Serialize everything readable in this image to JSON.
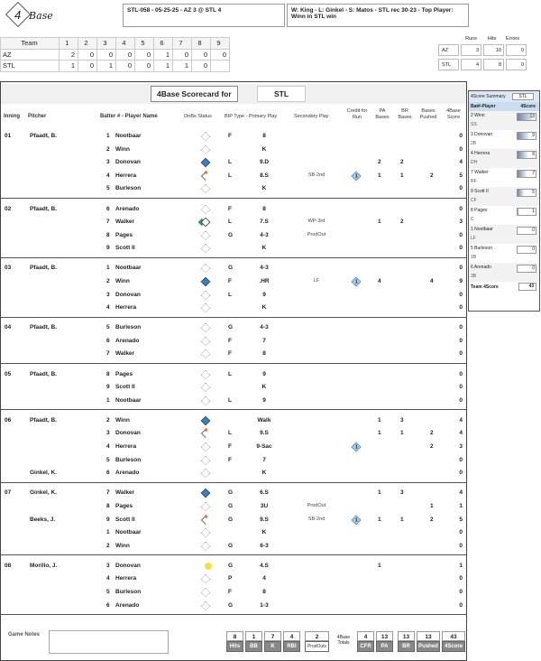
{
  "header": {
    "logo_text": "4Base",
    "logo_number": "4",
    "logo_word": "Base",
    "game_title": "STL-058 - 05-25-25 - AZ 3 @ STL 4",
    "game_summary": "W: King - L: Ginkel - S: Matos - STL rec 30-23 - Top Player: Winn in STL win"
  },
  "linescore": {
    "team_label": "Team",
    "innings": [
      "1",
      "2",
      "3",
      "4",
      "5",
      "6",
      "7",
      "8",
      "9"
    ],
    "teams": [
      {
        "name": "AZ",
        "scores": [
          "2",
          "0",
          "0",
          "0",
          "0",
          "1",
          "0",
          "0",
          "0"
        ]
      },
      {
        "name": "STL",
        "scores": [
          "1",
          "0",
          "1",
          "0",
          "0",
          "1",
          "1",
          "0",
          ""
        ]
      }
    ]
  },
  "rhe": {
    "headers": [
      "Runs",
      "Hits",
      "Errors"
    ],
    "teams": [
      {
        "name": "AZ",
        "runs": "3",
        "hits": "10",
        "errors": "0"
      },
      {
        "name": "STL",
        "runs": "4",
        "hits": "8",
        "errors": "0"
      }
    ]
  },
  "scorecard": {
    "title": "4Base Scorecard for",
    "team": "STL",
    "columns": {
      "inning": "Inning",
      "pitcher": "Pitcher",
      "batter": "Batter # - Player Name",
      "onbase": "OnBs Status",
      "bip": "BIP Type - Primary Play",
      "secondary": "Secondary Play",
      "cfr": "Credit for Run",
      "pa": "PA Bases",
      "br": "BR Bases",
      "pushed": "Bases Pushed",
      "score": "4Base Score"
    },
    "innings": [
      {
        "inning": "01",
        "rows": [
          {
            "pitcher": "Pfaadt, B.",
            "num": "1",
            "name": "Nootbaar",
            "onbase": "empty",
            "bip": "F",
            "play": "8",
            "secondary": "",
            "cfr": "",
            "pa": "",
            "br": "",
            "pushed": "",
            "score": "0"
          },
          {
            "pitcher": "",
            "num": "2",
            "name": "Winn",
            "onbase": "empty",
            "bip": "",
            "play": "K",
            "secondary": "",
            "cfr": "",
            "pa": "",
            "br": "",
            "pushed": "",
            "score": "0"
          },
          {
            "pitcher": "",
            "num": "3",
            "name": "Donovan",
            "onbase": "blue",
            "bip": "L",
            "play": "9.D",
            "secondary": "",
            "cfr": "",
            "pa": "2",
            "br": "2",
            "pushed": "",
            "score": "4"
          },
          {
            "pitcher": "",
            "num": "4",
            "name": "Herrera",
            "onbase": "orange",
            "bip": "L",
            "play": "8.S",
            "secondary": "SB-2nd",
            "cfr": "1",
            "pa": "1",
            "br": "1",
            "pushed": "2",
            "score": "5"
          },
          {
            "pitcher": "",
            "num": "5",
            "name": "Burleson",
            "onbase": "empty",
            "bip": "",
            "play": "K",
            "secondary": "",
            "cfr": "",
            "pa": "",
            "br": "",
            "pushed": "",
            "score": "0"
          }
        ]
      },
      {
        "inning": "02",
        "rows": [
          {
            "pitcher": "Pfaadt, B.",
            "num": "6",
            "name": "Arenado",
            "onbase": "empty",
            "bip": "F",
            "play": "8",
            "secondary": "",
            "cfr": "",
            "pa": "",
            "br": "",
            "pushed": "",
            "score": "0"
          },
          {
            "pitcher": "",
            "num": "7",
            "name": "Walker",
            "onbase": "green",
            "bip": "L",
            "play": "7.S",
            "secondary": "WP-3rd",
            "cfr": "",
            "pa": "1",
            "br": "2",
            "pushed": "",
            "score": "3"
          },
          {
            "pitcher": "",
            "num": "8",
            "name": "Pages",
            "onbase": "empty",
            "bip": "G",
            "play": "4-3",
            "secondary": "ProdOut",
            "cfr": "",
            "pa": "",
            "br": "",
            "pushed": "",
            "score": "0"
          },
          {
            "pitcher": "",
            "num": "9",
            "name": "Scott II",
            "onbase": "empty",
            "bip": "",
            "play": "K",
            "secondary": "",
            "cfr": "",
            "pa": "",
            "br": "",
            "pushed": "",
            "score": "0"
          }
        ]
      },
      {
        "inning": "03",
        "rows": [
          {
            "pitcher": "Pfaadt, B.",
            "num": "1",
            "name": "Nootbaar",
            "onbase": "empty",
            "bip": "G",
            "play": "4-3",
            "secondary": "",
            "cfr": "",
            "pa": "",
            "br": "",
            "pushed": "",
            "score": "0"
          },
          {
            "pitcher": "",
            "num": "2",
            "name": "Winn",
            "onbase": "blue",
            "bip": "F",
            "play": ".HR",
            "secondary": "LF",
            "cfr": "1",
            "pa": "4",
            "br": "",
            "pushed": "4",
            "score": "9"
          },
          {
            "pitcher": "",
            "num": "3",
            "name": "Donovan",
            "onbase": "empty",
            "bip": "L",
            "play": "9",
            "secondary": "",
            "cfr": "",
            "pa": "",
            "br": "",
            "pushed": "",
            "score": "0"
          },
          {
            "pitcher": "",
            "num": "4",
            "name": "Herrera",
            "onbase": "empty",
            "bip": "",
            "play": "K",
            "secondary": "",
            "cfr": "",
            "pa": "",
            "br": "",
            "pushed": "",
            "score": "0"
          }
        ]
      },
      {
        "inning": "04",
        "rows": [
          {
            "pitcher": "Pfaadt, B.",
            "num": "5",
            "name": "Burleson",
            "onbase": "empty",
            "bip": "G",
            "play": "4-3",
            "secondary": "",
            "cfr": "",
            "pa": "",
            "br": "",
            "pushed": "",
            "score": "0"
          },
          {
            "pitcher": "",
            "num": "6",
            "name": "Arenado",
            "onbase": "empty",
            "bip": "F",
            "play": "7",
            "secondary": "",
            "cfr": "",
            "pa": "",
            "br": "",
            "pushed": "",
            "score": "0"
          },
          {
            "pitcher": "",
            "num": "7",
            "name": "Walker",
            "onbase": "empty",
            "bip": "F",
            "play": "8",
            "secondary": "",
            "cfr": "",
            "pa": "",
            "br": "",
            "pushed": "",
            "score": "0"
          }
        ]
      },
      {
        "inning": "05",
        "rows": [
          {
            "pitcher": "Pfaadt, B.",
            "num": "8",
            "name": "Pages",
            "onbase": "empty",
            "bip": "L",
            "play": "9",
            "secondary": "",
            "cfr": "",
            "pa": "",
            "br": "",
            "pushed": "",
            "score": "0"
          },
          {
            "pitcher": "",
            "num": "9",
            "name": "Scott II",
            "onbase": "empty",
            "bip": "",
            "play": "K",
            "secondary": "",
            "cfr": "",
            "pa": "",
            "br": "",
            "pushed": "",
            "score": "0"
          },
          {
            "pitcher": "",
            "num": "1",
            "name": "Nootbaar",
            "onbase": "empty",
            "bip": "L",
            "play": "9",
            "secondary": "",
            "cfr": "",
            "pa": "",
            "br": "",
            "pushed": "",
            "score": "0"
          }
        ]
      },
      {
        "inning": "06",
        "rows": [
          {
            "pitcher": "Pfaadt, B.",
            "num": "2",
            "name": "Winn",
            "onbase": "blue",
            "bip": "",
            "play": "Walk",
            "secondary": "",
            "cfr": "",
            "pa": "1",
            "br": "3",
            "pushed": "",
            "score": "4"
          },
          {
            "pitcher": "",
            "num": "3",
            "name": "Donovan",
            "onbase": "orange",
            "bip": "L",
            "play": "9.S",
            "secondary": "",
            "cfr": "",
            "pa": "1",
            "br": "1",
            "pushed": "2",
            "score": "4"
          },
          {
            "pitcher": "",
            "num": "4",
            "name": "Herrera",
            "onbase": "empty",
            "bip": "F",
            "play": "9-Sac",
            "secondary": "",
            "cfr": "1",
            "pa": "",
            "br": "",
            "pushed": "2",
            "score": "3"
          },
          {
            "pitcher": "",
            "num": "5",
            "name": "Burleson",
            "onbase": "empty",
            "bip": "F",
            "play": "7",
            "secondary": "",
            "cfr": "",
            "pa": "",
            "br": "",
            "pushed": "",
            "score": "0"
          },
          {
            "pitcher": "Ginkel, K.",
            "num": "6",
            "name": "Arenado",
            "onbase": "empty",
            "bip": "",
            "play": "K",
            "secondary": "",
            "cfr": "",
            "pa": "",
            "br": "",
            "pushed": "",
            "score": "0"
          }
        ]
      },
      {
        "inning": "07",
        "rows": [
          {
            "pitcher": "Ginkel, K.",
            "num": "7",
            "name": "Walker",
            "onbase": "blue",
            "bip": "G",
            "play": "6.S",
            "secondary": "",
            "cfr": "",
            "pa": "1",
            "br": "3",
            "pushed": "",
            "score": "4"
          },
          {
            "pitcher": "",
            "num": "8",
            "name": "Pages",
            "onbase": "empty",
            "bip": "G",
            "play": "3U",
            "secondary": "ProdOut",
            "cfr": "",
            "pa": "",
            "br": "",
            "pushed": "1",
            "score": "1"
          },
          {
            "pitcher": "Beeks, J.",
            "num": "9",
            "name": "Scott II",
            "onbase": "orange",
            "bip": "G",
            "play": "9.S",
            "secondary": "SB-2nd",
            "cfr": "1",
            "pa": "1",
            "br": "1",
            "pushed": "2",
            "score": "5"
          },
          {
            "pitcher": "",
            "num": "1",
            "name": "Nootbaar",
            "onbase": "empty",
            "bip": "",
            "play": "K",
            "secondary": "",
            "cfr": "",
            "pa": "",
            "br": "",
            "pushed": "",
            "score": "0"
          },
          {
            "pitcher": "",
            "num": "2",
            "name": "Winn",
            "onbase": "empty",
            "bip": "G",
            "play": "6-3",
            "secondary": "",
            "cfr": "",
            "pa": "",
            "br": "",
            "pushed": "",
            "score": "0"
          }
        ]
      },
      {
        "inning": "08",
        "rows": [
          {
            "pitcher": "Morillo, J.",
            "num": "3",
            "name": "Donovan",
            "onbase": "yellow",
            "bip": "G",
            "play": "4.S",
            "secondary": "",
            "cfr": "",
            "pa": "1",
            "br": "",
            "pushed": "",
            "score": "1"
          },
          {
            "pitcher": "",
            "num": "4",
            "name": "Herrera",
            "onbase": "empty",
            "bip": "P",
            "play": "4",
            "secondary": "",
            "cfr": "",
            "pa": "",
            "br": "",
            "pushed": "",
            "score": "0"
          },
          {
            "pitcher": "",
            "num": "5",
            "name": "Burleson",
            "onbase": "empty",
            "bip": "F",
            "play": "8",
            "secondary": "",
            "cfr": "",
            "pa": "",
            "br": "",
            "pushed": "",
            "score": "0"
          },
          {
            "pitcher": "",
            "num": "6",
            "name": "Arenado",
            "onbase": "empty",
            "bip": "G",
            "play": "1-3",
            "secondary": "",
            "cfr": "",
            "pa": "",
            "br": "",
            "pushed": "",
            "score": "0"
          }
        ]
      }
    ]
  },
  "summary": {
    "title": "4Score Summary",
    "team": "STL",
    "col_player": "Bat#-Player",
    "col_score": "4Score",
    "max_score": 13,
    "players": [
      {
        "player": "2 Winn",
        "pos": "SS",
        "score": "13"
      },
      {
        "player": "3 Donovan",
        "pos": "2B",
        "score": "9"
      },
      {
        "player": "4 Herrera",
        "pos": "DH",
        "score": "8"
      },
      {
        "player": "7 Walker",
        "pos": "RF",
        "score": "7"
      },
      {
        "player": "9 Scott II",
        "pos": "CF",
        "score": "5"
      },
      {
        "player": "8 Pages",
        "pos": "C",
        "score": "1"
      },
      {
        "player": "1 Nootbaar",
        "pos": "LF",
        "score": "0"
      },
      {
        "player": "5 Burleson",
        "pos": "1B",
        "score": "0"
      },
      {
        "player": "6 Arenado",
        "pos": "3B",
        "score": "0"
      }
    ],
    "team_label": "Team 4Score",
    "team_score": "43",
    "bar_color": "#6d87a6"
  },
  "footer": {
    "game_notes_label": "Game Notes",
    "totals_label": "4Base Totals",
    "stats": [
      {
        "label": "Hits",
        "value": "8"
      },
      {
        "label": "BB",
        "value": "1"
      },
      {
        "label": "K",
        "value": "7"
      },
      {
        "label": "RBI",
        "value": "4"
      }
    ],
    "prod_outs": {
      "label": "ProdOuts",
      "value": "2"
    },
    "totals": [
      {
        "label": "CFR",
        "value": "4"
      },
      {
        "label": "PA",
        "value": "13"
      },
      {
        "label": "BR",
        "value": "13"
      },
      {
        "label": "Pushed",
        "value": "13"
      },
      {
        "label": "4Score",
        "value": "43"
      }
    ]
  }
}
